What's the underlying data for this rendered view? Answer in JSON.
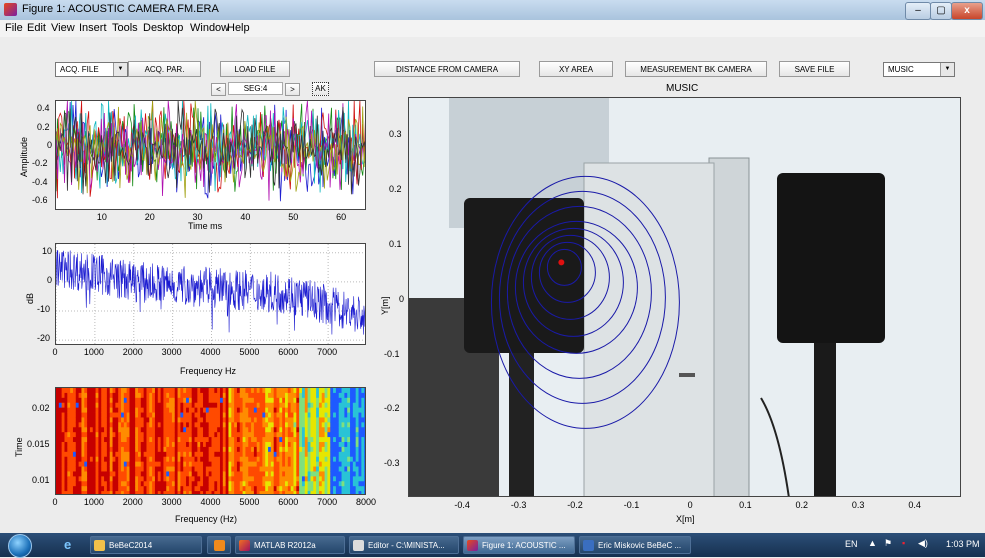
{
  "window": {
    "title": "Figure 1: ACOUSTIC CAMERA FM.ERA",
    "minimize": "–",
    "maximize": "▢",
    "close": "x"
  },
  "menu": [
    "File",
    "Edit",
    "View",
    "Insert",
    "Tools",
    "Desktop",
    "Window",
    "Help"
  ],
  "controls": {
    "acq_file_select": "ACQ. FILE",
    "acq_par": "ACQ. PAR.",
    "load_file": "LOAD FILE",
    "prev_seg": "<",
    "seg": "SEG:4",
    "next_seg": ">",
    "ak": "AK",
    "distance": "DISTANCE FROM CAMERA",
    "xy_area": "XY AREA",
    "measurement": "MEASUREMENT BK CAMERA",
    "save_file": "SAVE FILE",
    "music_select": "MUSIC"
  },
  "colors": {
    "figure_bg": "#ececec",
    "taskbar": "#1f3d63",
    "contour": "#1a1aa8",
    "source_marker": "#e01010",
    "spectrum_line": "#1a1ad0"
  },
  "chart_data": [
    {
      "type": "line",
      "name": "time-signal",
      "xlabel": "Time ms",
      "ylabel": "Amplitude",
      "xlim": [
        0,
        65
      ],
      "ylim": [
        -0.7,
        0.5
      ],
      "xticks": [
        "10",
        "20",
        "30",
        "40",
        "50",
        "60"
      ],
      "yticks": [
        "0.4",
        "0.2",
        "0",
        "-0.2",
        "-0.4",
        "-0.6"
      ],
      "series_colors": [
        "#1f1fd0",
        "#138a13",
        "#d01010",
        "#10b8c0",
        "#b010b0",
        "#a0a010",
        "#333333"
      ]
    },
    {
      "type": "line",
      "name": "spectrum",
      "xlabel": "Frequency Hz",
      "ylabel": "dB",
      "xlim": [
        0,
        8000
      ],
      "ylim": [
        -22,
        13
      ],
      "xticks": [
        "0",
        "1000",
        "2000",
        "3000",
        "4000",
        "5000",
        "6000",
        "7000"
      ],
      "yticks": [
        "10",
        "0",
        "-10",
        "-20"
      ],
      "envelope_db": [
        [
          0,
          5
        ],
        [
          1000,
          3
        ],
        [
          2000,
          0
        ],
        [
          3000,
          -1
        ],
        [
          4000,
          -2
        ],
        [
          5000,
          -3
        ],
        [
          6000,
          -4
        ],
        [
          7000,
          -8
        ],
        [
          8000,
          -12
        ]
      ],
      "grid": true
    },
    {
      "type": "heatmap",
      "name": "spectrogram",
      "xlabel": "Frequency (Hz)",
      "ylabel": "Time",
      "xlim": [
        0,
        8000
      ],
      "ylim": [
        0.008,
        0.023
      ],
      "xticks": [
        "0",
        "1000",
        "2000",
        "3000",
        "4000",
        "5000",
        "6000",
        "7000",
        "8000"
      ],
      "yticks": [
        "0.02",
        "0.015",
        "0.01"
      ],
      "band_colors": [
        "#c60000",
        "#ff4a00",
        "#ff8c00",
        "#e6e600",
        "#7fe07f",
        "#29c3d6",
        "#1e5aff"
      ]
    },
    {
      "type": "scatter",
      "name": "acoustic-map",
      "title": "MUSIC",
      "xlabel": "X[m]",
      "ylabel": "Y[m]",
      "xlim": [
        -0.5,
        0.48
      ],
      "ylim": [
        -0.36,
        0.37
      ],
      "xticks": [
        "-0.4",
        "-0.3",
        "-0.2",
        "-0.1",
        "0",
        "0.1",
        "0.2",
        "0.3",
        "0.4"
      ],
      "yticks": [
        "0.3",
        "0.2",
        "0.1",
        "0",
        "-0.1",
        "-0.2",
        "-0.3"
      ],
      "source_point": {
        "x": -0.23,
        "y": 0.07
      },
      "contour_count": 8
    }
  ],
  "taskbar": {
    "items": [
      "BeBeC2014",
      "",
      "MATLAB R2012a",
      "Editor - C:\\MINISTA...",
      "Figure 1: ACOUSTIC ...",
      "Eric Miskovic BeBeC ..."
    ],
    "lang": "EN",
    "time": "1:03 PM"
  }
}
